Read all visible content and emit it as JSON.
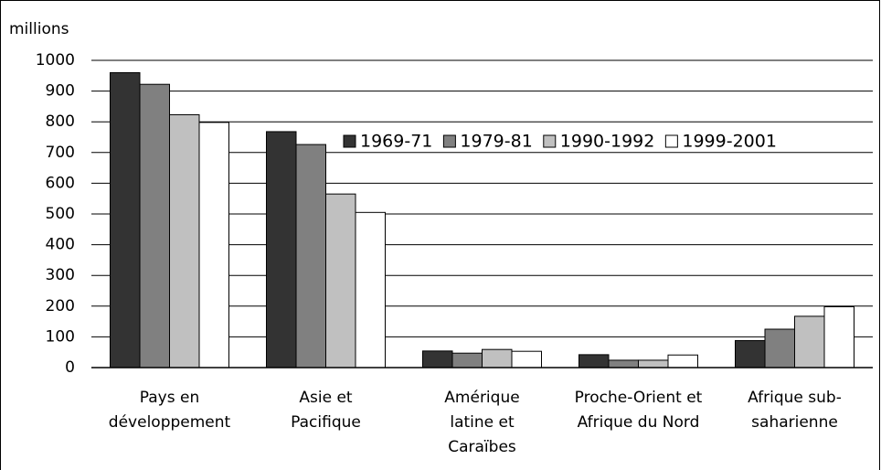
{
  "chart_data": {
    "type": "bar",
    "y_unit_label": "millions",
    "categories": [
      "Pays en\ndéveloppement",
      "Asie et\nPacifique",
      "Amérique\nlatine et\nCaraïbes",
      "Proche-Orient et\nAfrique du Nord",
      "Afrique sub-\nsaharienne"
    ],
    "series": [
      {
        "name": "1969-71",
        "color": "#333333",
        "values": [
          960,
          768,
          54,
          42,
          88
        ]
      },
      {
        "name": "1979-81",
        "color": "#808080",
        "values": [
          922,
          726,
          47,
          24,
          125
        ]
      },
      {
        "name": "1990-1992",
        "color": "#c0c0c0",
        "values": [
          823,
          565,
          59,
          24,
          167
        ]
      },
      {
        "name": "1999-2001",
        "color": "#ffffff",
        "values": [
          798,
          505,
          53,
          41,
          198
        ]
      }
    ],
    "ylim": [
      0,
      1000
    ],
    "yticks": [
      0,
      100,
      200,
      300,
      400,
      500,
      600,
      700,
      800,
      900,
      1000
    ],
    "grid": true
  }
}
